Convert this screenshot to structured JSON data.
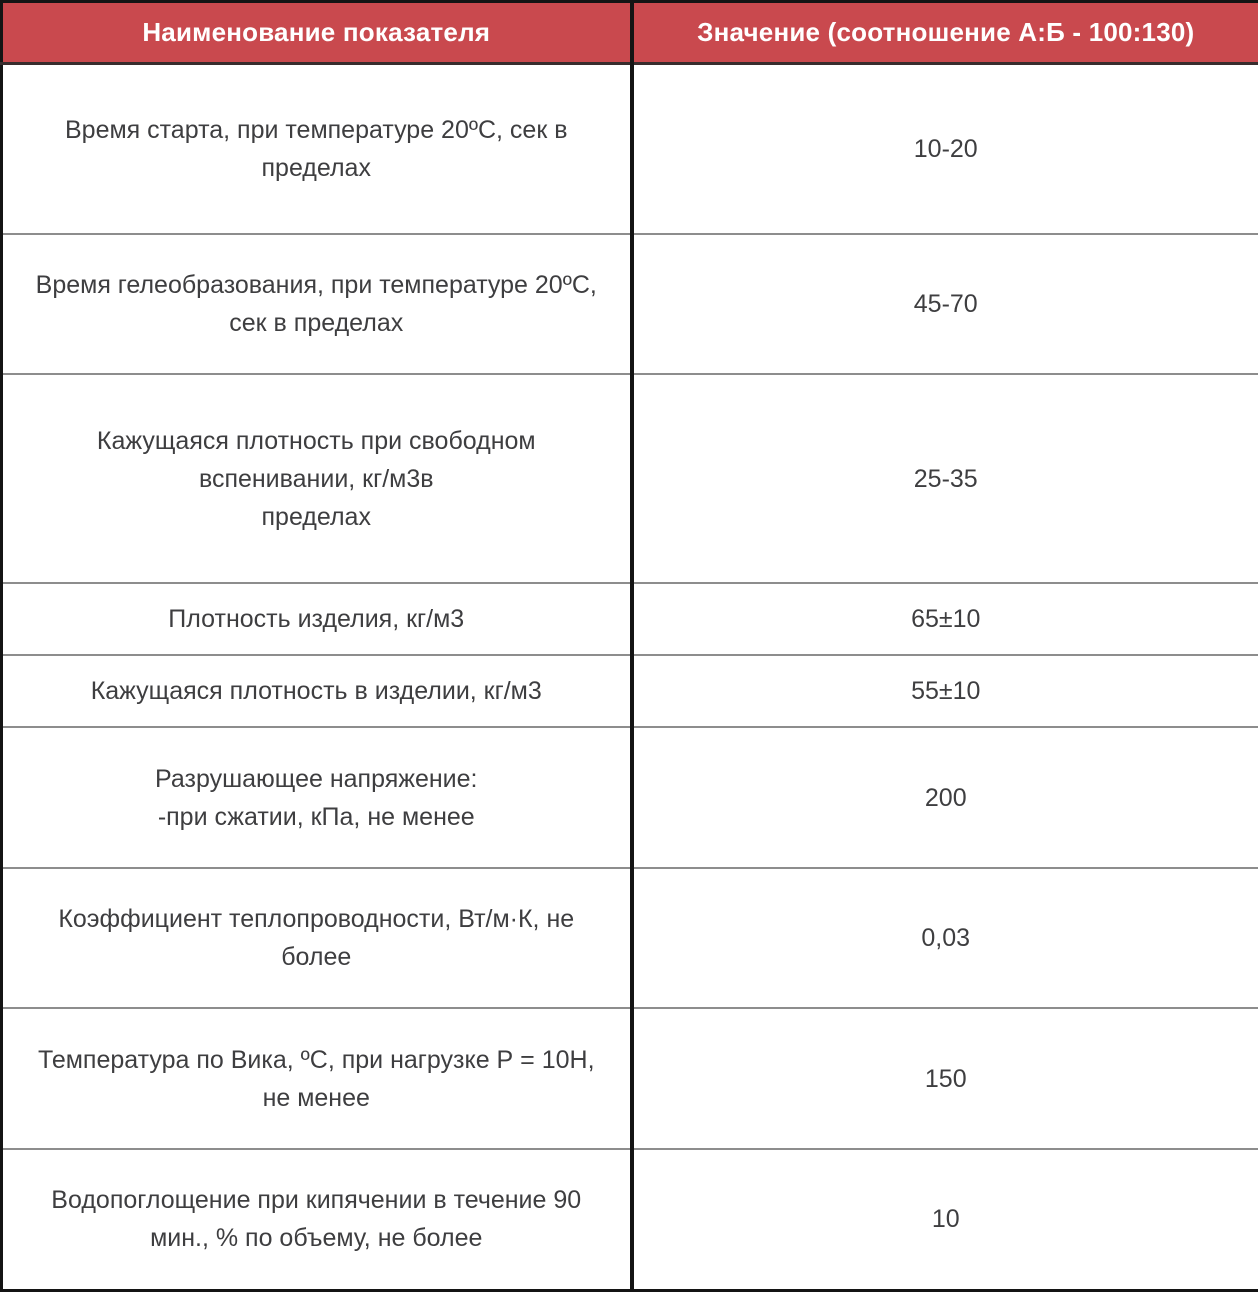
{
  "table": {
    "columns": [
      "Наименование показателя",
      "Значение (соотношение А:Б - 100:130)"
    ],
    "rows": [
      {
        "name": "Время старта, при температуре 20ºС, сек в\nпределах",
        "value": "10-20"
      },
      {
        "name": "Время гелеобразования, при температуре 20ºС,\nсек в пределах",
        "value": "45-70"
      },
      {
        "name": "Кажущаяся плотность при свободном\nвспенивании, кг/м3в\nпределах",
        "value": "25-35"
      },
      {
        "name": "Плотность изделия, кг/м3",
        "value": "65±10"
      },
      {
        "name": "Кажущаяся плотность в изделии, кг/м3",
        "value": "55±10"
      },
      {
        "name": "Разрушающее напряжение:\n-при сжатии, кПа, не менее",
        "value": "200"
      },
      {
        "name": "Коэффициент теплопроводности, Вт/м·К, не\nболее",
        "value": "0,03"
      },
      {
        "name": "Температура по Вика, ºС, при нагрузке Р = 10Н,\nне менее",
        "value": "150"
      },
      {
        "name": "Водопоглощение при кипячении в течение 90\nмин., % по объему, не более",
        "value": "10"
      }
    ]
  },
  "colors": {
    "header_bg": "#c9494e",
    "header_text": "#ffffff",
    "body_text": "#3e3e40",
    "row_divider": "#8d8d8d",
    "table_border": "#141414",
    "header_bottom": "#382c2d"
  }
}
